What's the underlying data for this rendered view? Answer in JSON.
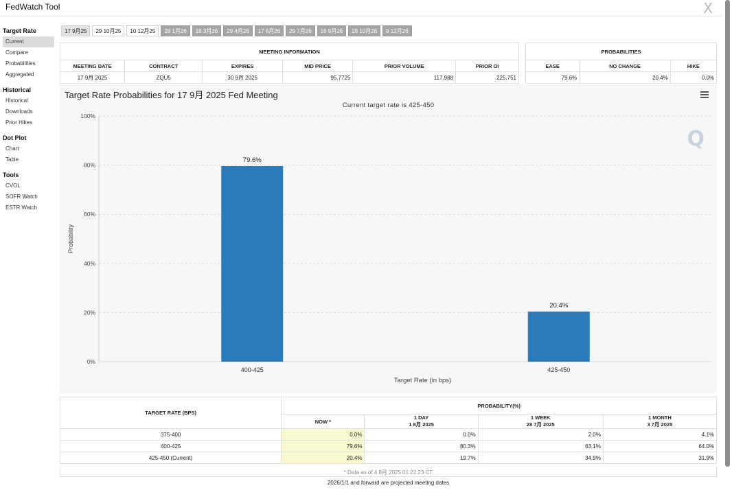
{
  "app": {
    "title": "FedWatch Tool",
    "close_glyph": "X"
  },
  "sidebar": {
    "sections": [
      {
        "title": "Target Rate",
        "items": [
          "Current",
          "Compare",
          "Probabilities",
          "Aggregated"
        ]
      },
      {
        "title": "Historical",
        "items": [
          "Historical",
          "Downloads",
          "Prior Hikes"
        ]
      },
      {
        "title": "Dot Plot",
        "items": [
          "Chart",
          "Table"
        ]
      },
      {
        "title": "Tools",
        "items": [
          "CVOL",
          "SOFR Watch",
          "ESTR Watch"
        ]
      }
    ],
    "active_item": "Current"
  },
  "tabs": [
    "17 9月25",
    "29 10月25",
    "10 12月25",
    "28 1月26",
    "18 3月26",
    "29 4月26",
    "17 6月26",
    "29 7月26",
    "16 9月26",
    "28 10月26",
    "9 12月26"
  ],
  "meeting_info": {
    "header": "MEETING INFORMATION",
    "columns": [
      "MEETING DATE",
      "CONTRACT",
      "EXPIRES",
      "MID PRICE",
      "PRIOR VOLUME",
      "PRIOR OI"
    ],
    "row": [
      "17 9月 2025",
      "ZQU5",
      "30 9月 2025",
      "95.7725",
      "117,988",
      "225,751"
    ]
  },
  "probabilities": {
    "header": "PROBABILITIES",
    "columns": [
      "EASE",
      "NO CHANGE",
      "HIKE"
    ],
    "row": [
      "79.6%",
      "20.4%",
      "0.0%"
    ]
  },
  "chart": {
    "title": "Target Rate Probabilities for 17 9月 2025 Fed Meeting",
    "subtitle": "Current target rate is 425-450",
    "logo": "Q"
  },
  "chart_data": {
    "type": "bar",
    "categories": [
      "400-425",
      "425-450"
    ],
    "values": [
      79.6,
      20.4
    ],
    "value_labels": [
      "79.6%",
      "20.4%"
    ],
    "xlabel": "Target Rate (in bps)",
    "ylabel": "Probability",
    "ylim": [
      0,
      100
    ],
    "yticks": [
      "0%",
      "20%",
      "40%",
      "60%",
      "80%",
      "100%"
    ],
    "bar_color": "#2b7bba",
    "grid": true
  },
  "prob_table": {
    "target_header": "TARGET RATE (BPS)",
    "prob_header": "PROBABILITY(%)",
    "columns": [
      {
        "label": "NOW *",
        "sub": ""
      },
      {
        "label": "1 DAY",
        "sub": "1 8月 2025"
      },
      {
        "label": "1 WEEK",
        "sub": "28 7月 2025"
      },
      {
        "label": "1 MONTH",
        "sub": "3 7月 2025"
      }
    ],
    "rows": [
      {
        "rate": "375-400",
        "values": [
          "0.0%",
          "0.0%",
          "2.0%",
          "4.1%"
        ]
      },
      {
        "rate": "400-425",
        "values": [
          "79.6%",
          "80.3%",
          "63.1%",
          "64.0%"
        ]
      },
      {
        "rate": "425-450 (Current)",
        "values": [
          "20.4%",
          "19.7%",
          "34.9%",
          "31.9%"
        ]
      }
    ],
    "data_note": "* Data as of 4 8月 2025 01:22:23 CT"
  },
  "footer": "2026/1/1 and forward are projected meeting dates"
}
